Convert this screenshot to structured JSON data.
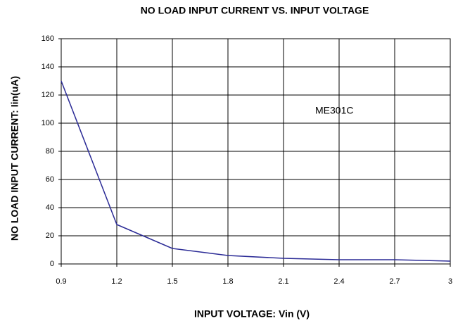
{
  "chart_data": {
    "type": "line",
    "title": "NO LOAD INPUT CURRENT  VS.  INPUT VOLTAGE",
    "x_label": "INPUT VOLTAGE:  Vin (V)",
    "y_label": "NO LOAD INPUT CURRENT:  Iin(uA)",
    "x": [
      0.9,
      1.2,
      1.5,
      1.8,
      2.1,
      2.4,
      2.7,
      3
    ],
    "series": [
      {
        "name": "ME301C",
        "color": "#2b2b96",
        "values": [
          130,
          28,
          11,
          6,
          4,
          3,
          3,
          2
        ]
      }
    ],
    "xlim": [
      0.9,
      3
    ],
    "xticks": [
      0.9,
      1.2,
      1.5,
      1.8,
      2.1,
      2.4,
      2.7,
      3
    ],
    "ylim": [
      0,
      160
    ],
    "yticks": [
      0,
      20,
      40,
      60,
      80,
      100,
      120,
      140,
      160
    ],
    "grid": true
  }
}
